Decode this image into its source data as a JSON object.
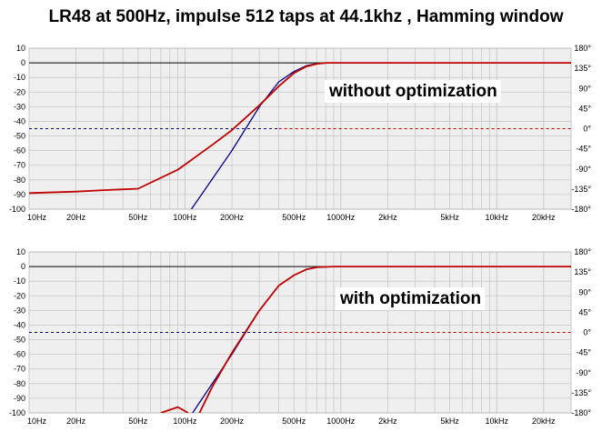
{
  "title": "LR48 at 500Hz, impulse 512 taps at 44.1khz , Hamming window",
  "colors": {
    "target": "#00008b",
    "measured": "#c00000",
    "grid": "#c8c8c8",
    "bg": "#efefef"
  },
  "chart_data": [
    {
      "type": "line",
      "annotation": "without optimization",
      "x_scale": "log",
      "xlim": [
        10,
        30000
      ],
      "ylim": [
        -100,
        10
      ],
      "y2lim": [
        -180,
        180
      ],
      "grid": true,
      "x_ticks": [
        {
          "v": 10,
          "label": "10Hz"
        },
        {
          "v": 20,
          "label": "20Hz"
        },
        {
          "v": 50,
          "label": "50Hz"
        },
        {
          "v": 100,
          "label": "100Hz"
        },
        {
          "v": 200,
          "label": "200Hz"
        },
        {
          "v": 500,
          "label": "500Hz"
        },
        {
          "v": 1000,
          "label": "1000Hz"
        },
        {
          "v": 2000,
          "label": "2kHz"
        },
        {
          "v": 5000,
          "label": "5kHz"
        },
        {
          "v": 10000,
          "label": "10kHz"
        },
        {
          "v": 20000,
          "label": "20kHz"
        }
      ],
      "y_ticks": [
        "10",
        "0",
        "-10",
        "-20",
        "-30",
        "-40",
        "-50",
        "-60",
        "-70",
        "-80",
        "-90",
        "-100"
      ],
      "y2_ticks": [
        "180°",
        "135°",
        "90°",
        "45°",
        "0°",
        "-45°",
        "-90°",
        "-135°",
        "-180°"
      ],
      "series": [
        {
          "color": "#00008b",
          "points": [
            [
              110,
              -100
            ],
            [
              200,
              -60
            ],
            [
              300,
              -30
            ],
            [
              400,
              -13
            ],
            [
              500,
              -6
            ],
            [
              600,
              -2
            ],
            [
              700,
              -0.5
            ],
            [
              900,
              0
            ],
            [
              30000,
              0
            ]
          ]
        },
        {
          "color": "#c00000",
          "points": [
            [
              10,
              -89
            ],
            [
              20,
              -88
            ],
            [
              30,
              -87
            ],
            [
              50,
              -86
            ],
            [
              90,
              -73
            ],
            [
              150,
              -56
            ],
            [
              200,
              -46
            ],
            [
              300,
              -29
            ],
            [
              400,
              -16
            ],
            [
              500,
              -7
            ],
            [
              600,
              -2.5
            ],
            [
              700,
              -0.7
            ],
            [
              800,
              0
            ],
            [
              1000,
              0
            ],
            [
              30000,
              0
            ]
          ]
        }
      ],
      "phase_line": {
        "y2": 0,
        "left_color": "#00008b",
        "right_color": "#c00000"
      }
    },
    {
      "type": "line",
      "annotation": "with optimization",
      "x_scale": "log",
      "xlim": [
        10,
        30000
      ],
      "ylim": [
        -100,
        10
      ],
      "y2lim": [
        -180,
        180
      ],
      "grid": true,
      "x_ticks": [
        {
          "v": 10,
          "label": "10Hz"
        },
        {
          "v": 20,
          "label": "20Hz"
        },
        {
          "v": 50,
          "label": "50Hz"
        },
        {
          "v": 100,
          "label": "100Hz"
        },
        {
          "v": 200,
          "label": "200Hz"
        },
        {
          "v": 500,
          "label": "500Hz"
        },
        {
          "v": 1000,
          "label": "1000Hz"
        },
        {
          "v": 2000,
          "label": "2kHz"
        },
        {
          "v": 5000,
          "label": "5kHz"
        },
        {
          "v": 10000,
          "label": "10kHz"
        },
        {
          "v": 20000,
          "label": "20kHz"
        }
      ],
      "y_ticks": [
        "10",
        "0",
        "-10",
        "-20",
        "-30",
        "-40",
        "-50",
        "-60",
        "-70",
        "-80",
        "-90",
        "-100"
      ],
      "y2_ticks": [
        "180°",
        "135°",
        "90°",
        "45°",
        "0°",
        "-45°",
        "-90°",
        "-135°",
        "-180°"
      ],
      "series": [
        {
          "color": "#00008b",
          "points": [
            [
              112,
              -100
            ],
            [
              200,
              -60
            ],
            [
              300,
              -30
            ],
            [
              400,
              -13
            ],
            [
              500,
              -6
            ],
            [
              600,
              -2
            ],
            [
              700,
              -0.5
            ],
            [
              900,
              0
            ],
            [
              30000,
              0
            ]
          ]
        },
        {
          "color": "#c00000",
          "points": [
            [
              70,
              -100
            ],
            [
              90,
              -96
            ],
            [
              105,
              -100
            ]
          ]
        },
        {
          "color": "#c00000",
          "points": [
            [
              124,
              -100
            ],
            [
              150,
              -82
            ],
            [
              200,
              -59
            ],
            [
              300,
              -30
            ],
            [
              400,
              -13
            ],
            [
              500,
              -6
            ],
            [
              600,
              -2
            ],
            [
              700,
              -0.5
            ],
            [
              900,
              0
            ],
            [
              30000,
              0
            ]
          ]
        }
      ],
      "phase_line": {
        "y2": 0,
        "left_color": "#00008b",
        "right_color": "#c00000"
      }
    }
  ]
}
